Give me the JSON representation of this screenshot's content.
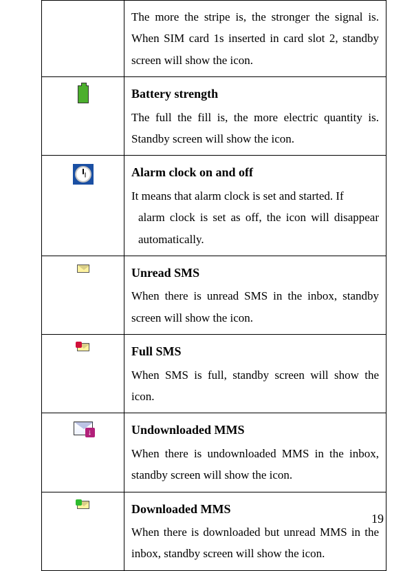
{
  "rows": [
    {
      "title": "",
      "description": "The more the stripe is, the stronger the signal is. When SIM card 1s inserted in card slot 2, standby screen will show the icon."
    },
    {
      "title": "Battery strength",
      "description": "The full the fill is, the more electric quantity is. Standby screen will show the icon."
    },
    {
      "title": "Alarm clock on and off",
      "description_line1": "It means that alarm clock is set and started. If",
      "description_line2": "alarm clock is set as off, the icon will disappear automatically."
    },
    {
      "title": "Unread SMS",
      "description": "When there is unread SMS in the inbox, standby screen will show the icon."
    },
    {
      "title": "Full SMS",
      "description": "When SMS is full, standby screen will show the icon."
    },
    {
      "title": "Undownloaded MMS",
      "description": "When there is undownloaded MMS in the inbox, standby screen will show the icon."
    },
    {
      "title": "Downloaded MMS",
      "description": "When there is downloaded but unread MMS in the inbox, standby screen will show the icon."
    }
  ],
  "page_number": "19"
}
